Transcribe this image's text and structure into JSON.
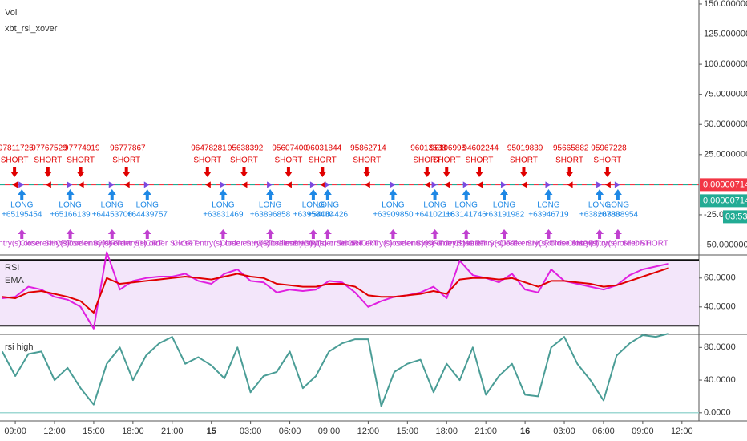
{
  "chart_data": [
    {
      "type": "signals",
      "title": "Vol",
      "subtitle": "xbt_rsi_xover",
      "xlim": [
        7.83,
        61.3
      ],
      "ylim": [
        -58.3,
        153.3
      ],
      "baseline": 0,
      "yticks": [
        {
          "value": 150,
          "label": "150.00000000"
        },
        {
          "value": 125,
          "label": "125.00000000"
        },
        {
          "value": 100,
          "label": "100.00000000"
        },
        {
          "value": 75,
          "label": "75.00000000"
        },
        {
          "value": 50,
          "label": "50.00000000"
        },
        {
          "value": 25,
          "label": "25.00000000"
        },
        {
          "value": -25,
          "label": "-25.0000000"
        },
        {
          "value": -50,
          "label": "-50.00000000"
        }
      ],
      "price_labels": [
        {
          "value": 7.14e-06,
          "label": "0.00000714",
          "color": "#f23645"
        },
        {
          "value": 7.14e-06,
          "label": "0.00000714",
          "color": "#22ab94"
        }
      ],
      "countdown": "03:53",
      "shorts": {
        "name": "SHORT",
        "color": "#e00000",
        "x": [
          8.94,
          11.5,
          14.0,
          17.5,
          23.7,
          26.5,
          29.9,
          32.5,
          35.9,
          40.5,
          42.0,
          44.5,
          47.9,
          51.4,
          54.3
        ],
        "labels": [
          "-97811725",
          "-97767529",
          "-97774919",
          "-96777867",
          "-96478281",
          "-95638392",
          "-95607400",
          "-96031844",
          "-95862714",
          "-96013638",
          "-96106998",
          "-94602244",
          "-95019839",
          "-95665882",
          "-95967228"
        ]
      },
      "longs": {
        "name": "LONG",
        "color": "#1e88e5",
        "x": [
          9.5,
          13.2,
          16.4,
          19.1,
          24.9,
          28.5,
          31.8,
          32.9,
          37.9,
          41.1,
          43.5,
          46.4,
          49.8,
          53.7,
          55.1
        ],
        "labels": [
          "+65195454",
          "+65166139",
          "+64453700",
          "+64439757",
          "+63831469",
          "+63896858",
          "+63958400",
          "+64064426",
          "+63909850",
          "+64102116",
          "+63141746",
          "+63191982",
          "+63946719",
          "+63820788",
          "+63808954"
        ]
      },
      "close": {
        "name": "Close entry(s) order SHORT",
        "color": "#c040d0",
        "x": [
          9.5,
          13.2,
          16.4,
          19.1,
          24.9,
          28.5,
          31.8,
          32.9,
          37.9,
          41.1,
          43.5,
          46.4,
          49.8,
          53.7,
          55.1
        ]
      }
    },
    {
      "type": "line",
      "xlim": [
        7.83,
        61.3
      ],
      "ylim": [
        21,
        76
      ],
      "hlines": [
        72.5,
        27
      ],
      "band_color": "#f3e6fa",
      "yticks": [
        {
          "value": 40,
          "label": "40.0000"
        },
        {
          "value": 60,
          "label": "60.0000"
        }
      ],
      "x": [
        8,
        9,
        10,
        11,
        12,
        13,
        14,
        15,
        16,
        17,
        18,
        19,
        20,
        21,
        22,
        23,
        24,
        25,
        26,
        27,
        28,
        29,
        30,
        31,
        32,
        33,
        34,
        35,
        36,
        37,
        38,
        39,
        40,
        41,
        42,
        43,
        44,
        45,
        46,
        47,
        48,
        49,
        50,
        51,
        52,
        53,
        54,
        55,
        56,
        57,
        58,
        59
      ],
      "series": [
        {
          "name": "RSI",
          "color": "#e020e0",
          "values": [
            46,
            47,
            54,
            52,
            47,
            45,
            40,
            25,
            78,
            52,
            58,
            60,
            61,
            61,
            63,
            58,
            56,
            63,
            66,
            58,
            57,
            50,
            52,
            51,
            52,
            58,
            57,
            50,
            40,
            44,
            47,
            48,
            50,
            54,
            46,
            72,
            62,
            60,
            57,
            63,
            52,
            50,
            66,
            58,
            56,
            54,
            52,
            55,
            62,
            66,
            68,
            70
          ]
        },
        {
          "name": "EMA",
          "color": "#e00000",
          "values": [
            47,
            46,
            50,
            51,
            49,
            47,
            44,
            36,
            60,
            56,
            57,
            58,
            59,
            60,
            61,
            60,
            59,
            61,
            63,
            61,
            60,
            56,
            55,
            54,
            54,
            56,
            56,
            54,
            48,
            47,
            47,
            48,
            49,
            51,
            49,
            59,
            60,
            60,
            59,
            60,
            57,
            54,
            58,
            58,
            57,
            56,
            54,
            55,
            58,
            61,
            64,
            67
          ]
        }
      ]
    },
    {
      "type": "line",
      "xlim": [
        7.83,
        61.3
      ],
      "ylim": [
        -10,
        96
      ],
      "hlines": [
        0
      ],
      "yticks": [
        {
          "value": 0,
          "label": "0.0000"
        },
        {
          "value": 40,
          "label": "40.0000"
        },
        {
          "value": 80,
          "label": "80.0000"
        }
      ],
      "xticks": [
        {
          "value": 9,
          "label": "09:00"
        },
        {
          "value": 12,
          "label": "12:00"
        },
        {
          "value": 15,
          "label": "15:00"
        },
        {
          "value": 18,
          "label": "18:00"
        },
        {
          "value": 21,
          "label": "21:00"
        },
        {
          "value": 24,
          "label": "15"
        },
        {
          "value": 27,
          "label": "03:00"
        },
        {
          "value": 30,
          "label": "06:00"
        },
        {
          "value": 33,
          "label": "09:00"
        },
        {
          "value": 36,
          "label": "12:00"
        },
        {
          "value": 39,
          "label": "15:00"
        },
        {
          "value": 42,
          "label": "18:00"
        },
        {
          "value": 45,
          "label": "21:00"
        },
        {
          "value": 48,
          "label": "16"
        },
        {
          "value": 51,
          "label": "03:00"
        },
        {
          "value": 54,
          "label": "06:00"
        },
        {
          "value": 57,
          "label": "09:00"
        },
        {
          "value": 60,
          "label": "12:00"
        }
      ],
      "x": [
        8,
        9,
        10,
        11,
        12,
        13,
        14,
        15,
        16,
        17,
        18,
        19,
        20,
        21,
        22,
        23,
        24,
        25,
        26,
        27,
        28,
        29,
        30,
        31,
        32,
        33,
        34,
        35,
        36,
        37,
        38,
        39,
        40,
        41,
        42,
        43,
        44,
        45,
        46,
        47,
        48,
        49,
        50,
        51,
        52,
        53,
        54,
        55,
        56,
        57,
        58,
        59
      ],
      "series": [
        {
          "name": "rsi high",
          "color": "#4a9d96",
          "values": [
            75,
            45,
            72,
            75,
            40,
            55,
            30,
            10,
            60,
            80,
            40,
            70,
            85,
            93,
            60,
            68,
            58,
            42,
            80,
            25,
            45,
            50,
            75,
            30,
            45,
            75,
            85,
            90,
            90,
            8,
            50,
            60,
            65,
            25,
            60,
            40,
            80,
            22,
            45,
            60,
            22,
            20,
            80,
            93,
            60,
            40,
            15,
            70,
            85,
            95,
            93,
            97
          ]
        }
      ]
    }
  ]
}
